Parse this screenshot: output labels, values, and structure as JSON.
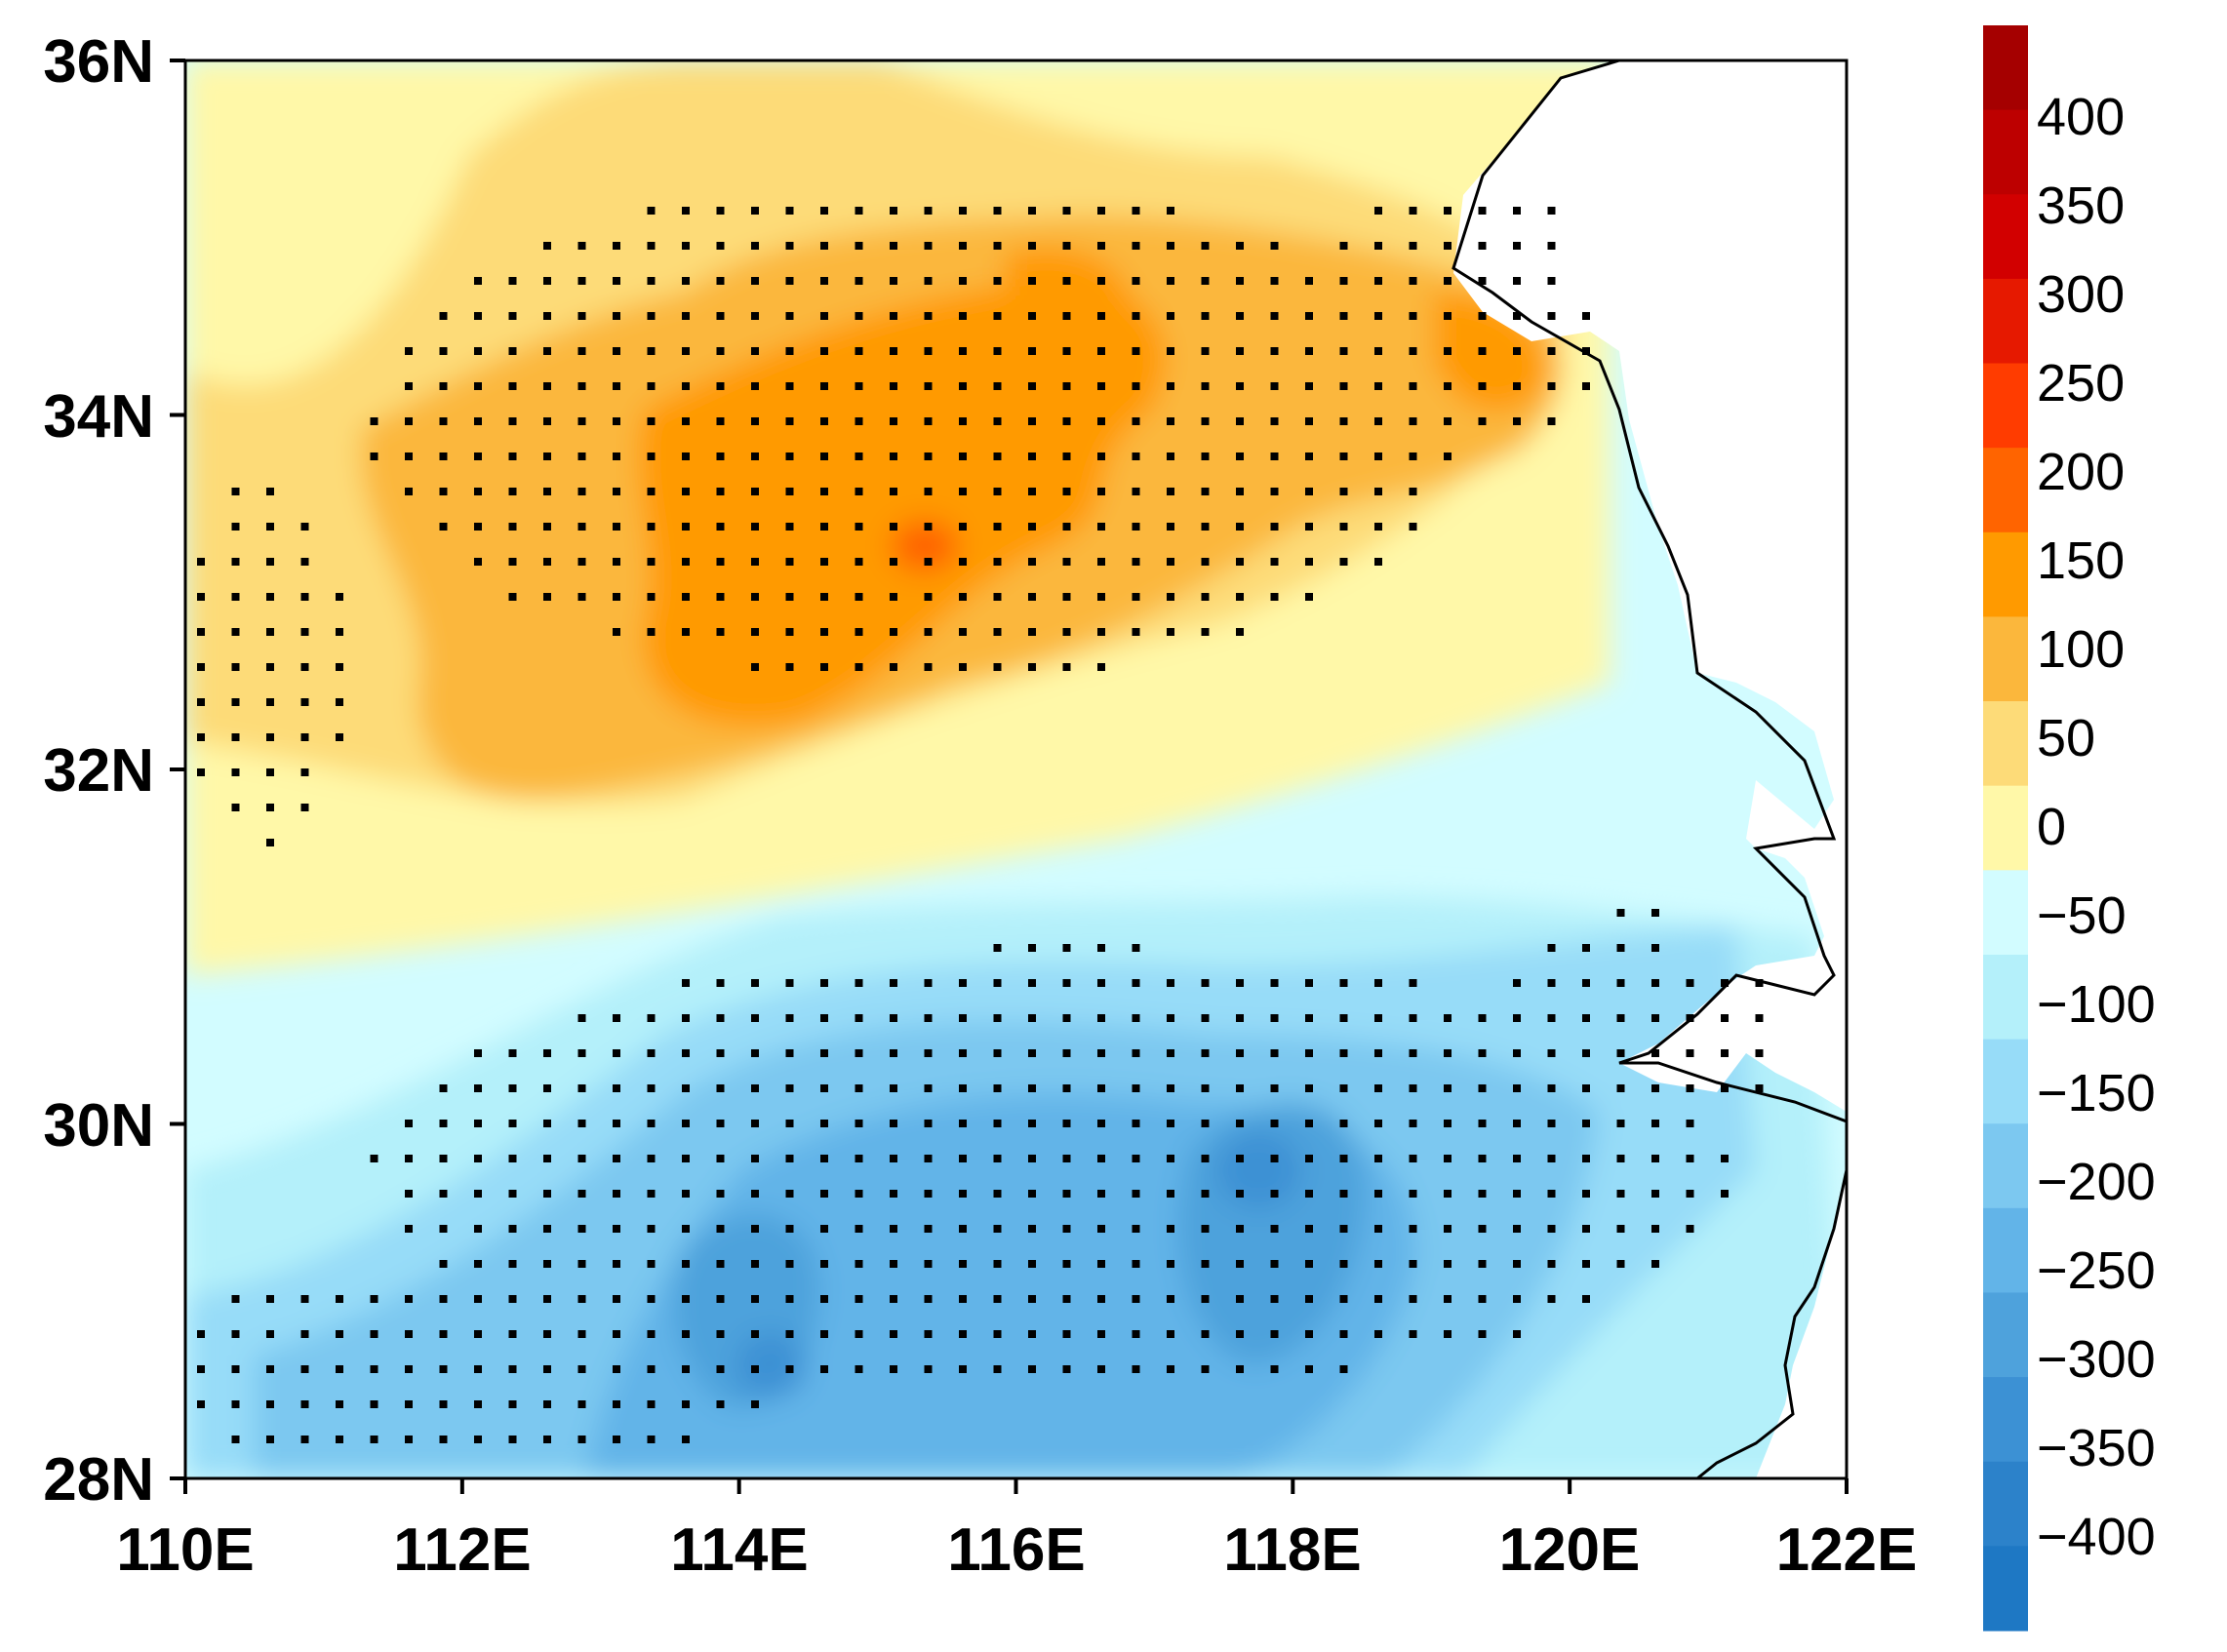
{
  "map": {
    "x_ticks": [
      "110E",
      "112E",
      "114E",
      "116E",
      "118E",
      "120E",
      "122E"
    ],
    "y_ticks": [
      "36N",
      "34N",
      "32N",
      "30N",
      "28N"
    ],
    "lon_range": [
      110,
      122
    ],
    "lat_range": [
      28,
      36
    ],
    "stippling": "significance dots",
    "coastline": "black line"
  },
  "colorbar": {
    "labels": [
      "400",
      "350",
      "300",
      "250",
      "200",
      "150",
      "100",
      "50",
      "0",
      "−50",
      "−100",
      "−150",
      "−200",
      "−250",
      "−300",
      "−350",
      "−400"
    ],
    "colors": [
      "#a50000",
      "#bd0000",
      "#d20000",
      "#e61900",
      "#ff3c00",
      "#ff6400",
      "#ff9a00",
      "#fbb73c",
      "#fddb78",
      "#fff8a8",
      "#d2fcff",
      "#b4f0fa",
      "#97dcf8",
      "#7cc8f0",
      "#62b4e8",
      "#4ea2dc",
      "#3c91d4",
      "#2c82ca",
      "#1e78c4"
    ]
  }
}
